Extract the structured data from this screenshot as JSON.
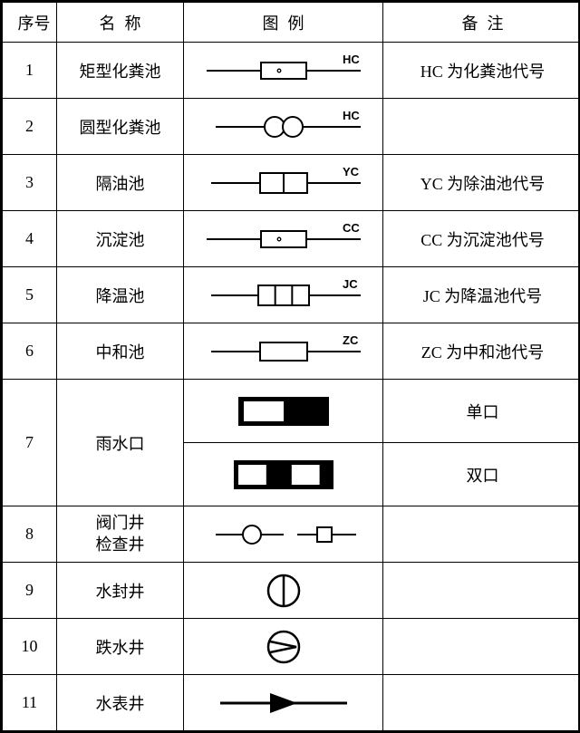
{
  "headers": {
    "seq": "序号",
    "name": "名称",
    "symbol": "图例",
    "note": "备注"
  },
  "rows": [
    {
      "seq": "1",
      "name": "矩型化粪池",
      "note": "HC 为化粪池代号",
      "symbol": {
        "type": "rect-dot",
        "label": "HC"
      }
    },
    {
      "seq": "2",
      "name": "圆型化粪池",
      "note": "",
      "symbol": {
        "type": "two-circles",
        "label": "HC"
      }
    },
    {
      "seq": "3",
      "name": "隔油池",
      "note": "YC 为除油池代号",
      "symbol": {
        "type": "rect-split",
        "label": "YC"
      }
    },
    {
      "seq": "4",
      "name": "沉淀池",
      "note": "CC 为沉淀池代号",
      "symbol": {
        "type": "rect-dot",
        "label": "CC"
      }
    },
    {
      "seq": "5",
      "name": "降温池",
      "note": "JC 为降温池代号",
      "symbol": {
        "type": "rect-3split",
        "label": "JC"
      }
    },
    {
      "seq": "6",
      "name": "中和池",
      "note": "ZC 为中和池代号",
      "symbol": {
        "type": "rect-plain",
        "label": "ZC"
      }
    }
  ],
  "row7": {
    "seq": "7",
    "name": "雨水口",
    "sym1": {
      "type": "inlet-single"
    },
    "note1": "单口",
    "sym2": {
      "type": "inlet-double"
    },
    "note2": "双口"
  },
  "rows2": [
    {
      "seq": "8",
      "name": "阀门井\n检查井",
      "note": "",
      "symbol": {
        "type": "valve-manhole"
      }
    },
    {
      "seq": "9",
      "name": "水封井",
      "note": "",
      "symbol": {
        "type": "circle-vline"
      }
    },
    {
      "seq": "10",
      "name": "跌水井",
      "note": "",
      "symbol": {
        "type": "circle-chevron"
      }
    },
    {
      "seq": "11",
      "name": "水表井",
      "note": "",
      "symbol": {
        "type": "line-triangle"
      }
    }
  ],
  "style": {
    "stroke": "#000000",
    "fill_black": "#000000",
    "fill_white": "#ffffff",
    "line_w": 2,
    "thick_w": 4,
    "label_font": "bold 13px Arial"
  }
}
